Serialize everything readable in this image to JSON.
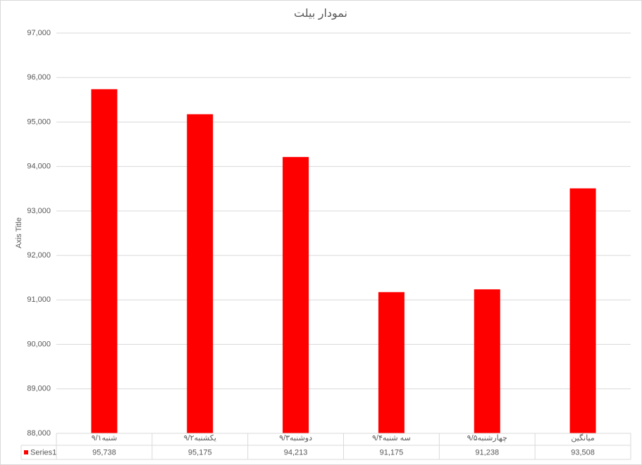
{
  "chart_data": {
    "type": "bar",
    "title": "نمودار بیلت",
    "y_label": "Axis Title",
    "categories": [
      "شنبه۹/۱",
      "یکشنبه۹/۲",
      "دوشنبه۹/۳",
      "سه شنبه۹/۴",
      "چهارشنبه۹/۵",
      "میانگین"
    ],
    "series": [
      {
        "name": "Series1",
        "color": "#ff0000",
        "values": [
          95738,
          95175,
          94213,
          91175,
          91238,
          93508
        ],
        "value_labels": [
          "95,738",
          "95,175",
          "94,213",
          "91,175",
          "91,238",
          "93,508"
        ]
      }
    ],
    "ylim": [
      88000,
      97000
    ],
    "yticks": [
      {
        "value": 88000,
        "label": "88,000"
      },
      {
        "value": 89000,
        "label": "89,000"
      },
      {
        "value": 90000,
        "label": "90,000"
      },
      {
        "value": 91000,
        "label": "91,000"
      },
      {
        "value": 92000,
        "label": "92,000"
      },
      {
        "value": 93000,
        "label": "93,000"
      },
      {
        "value": 94000,
        "label": "94,000"
      },
      {
        "value": 95000,
        "label": "95,000"
      },
      {
        "value": 96000,
        "label": "96,000"
      },
      {
        "value": 97000,
        "label": "97,000"
      }
    ],
    "grid": true
  }
}
